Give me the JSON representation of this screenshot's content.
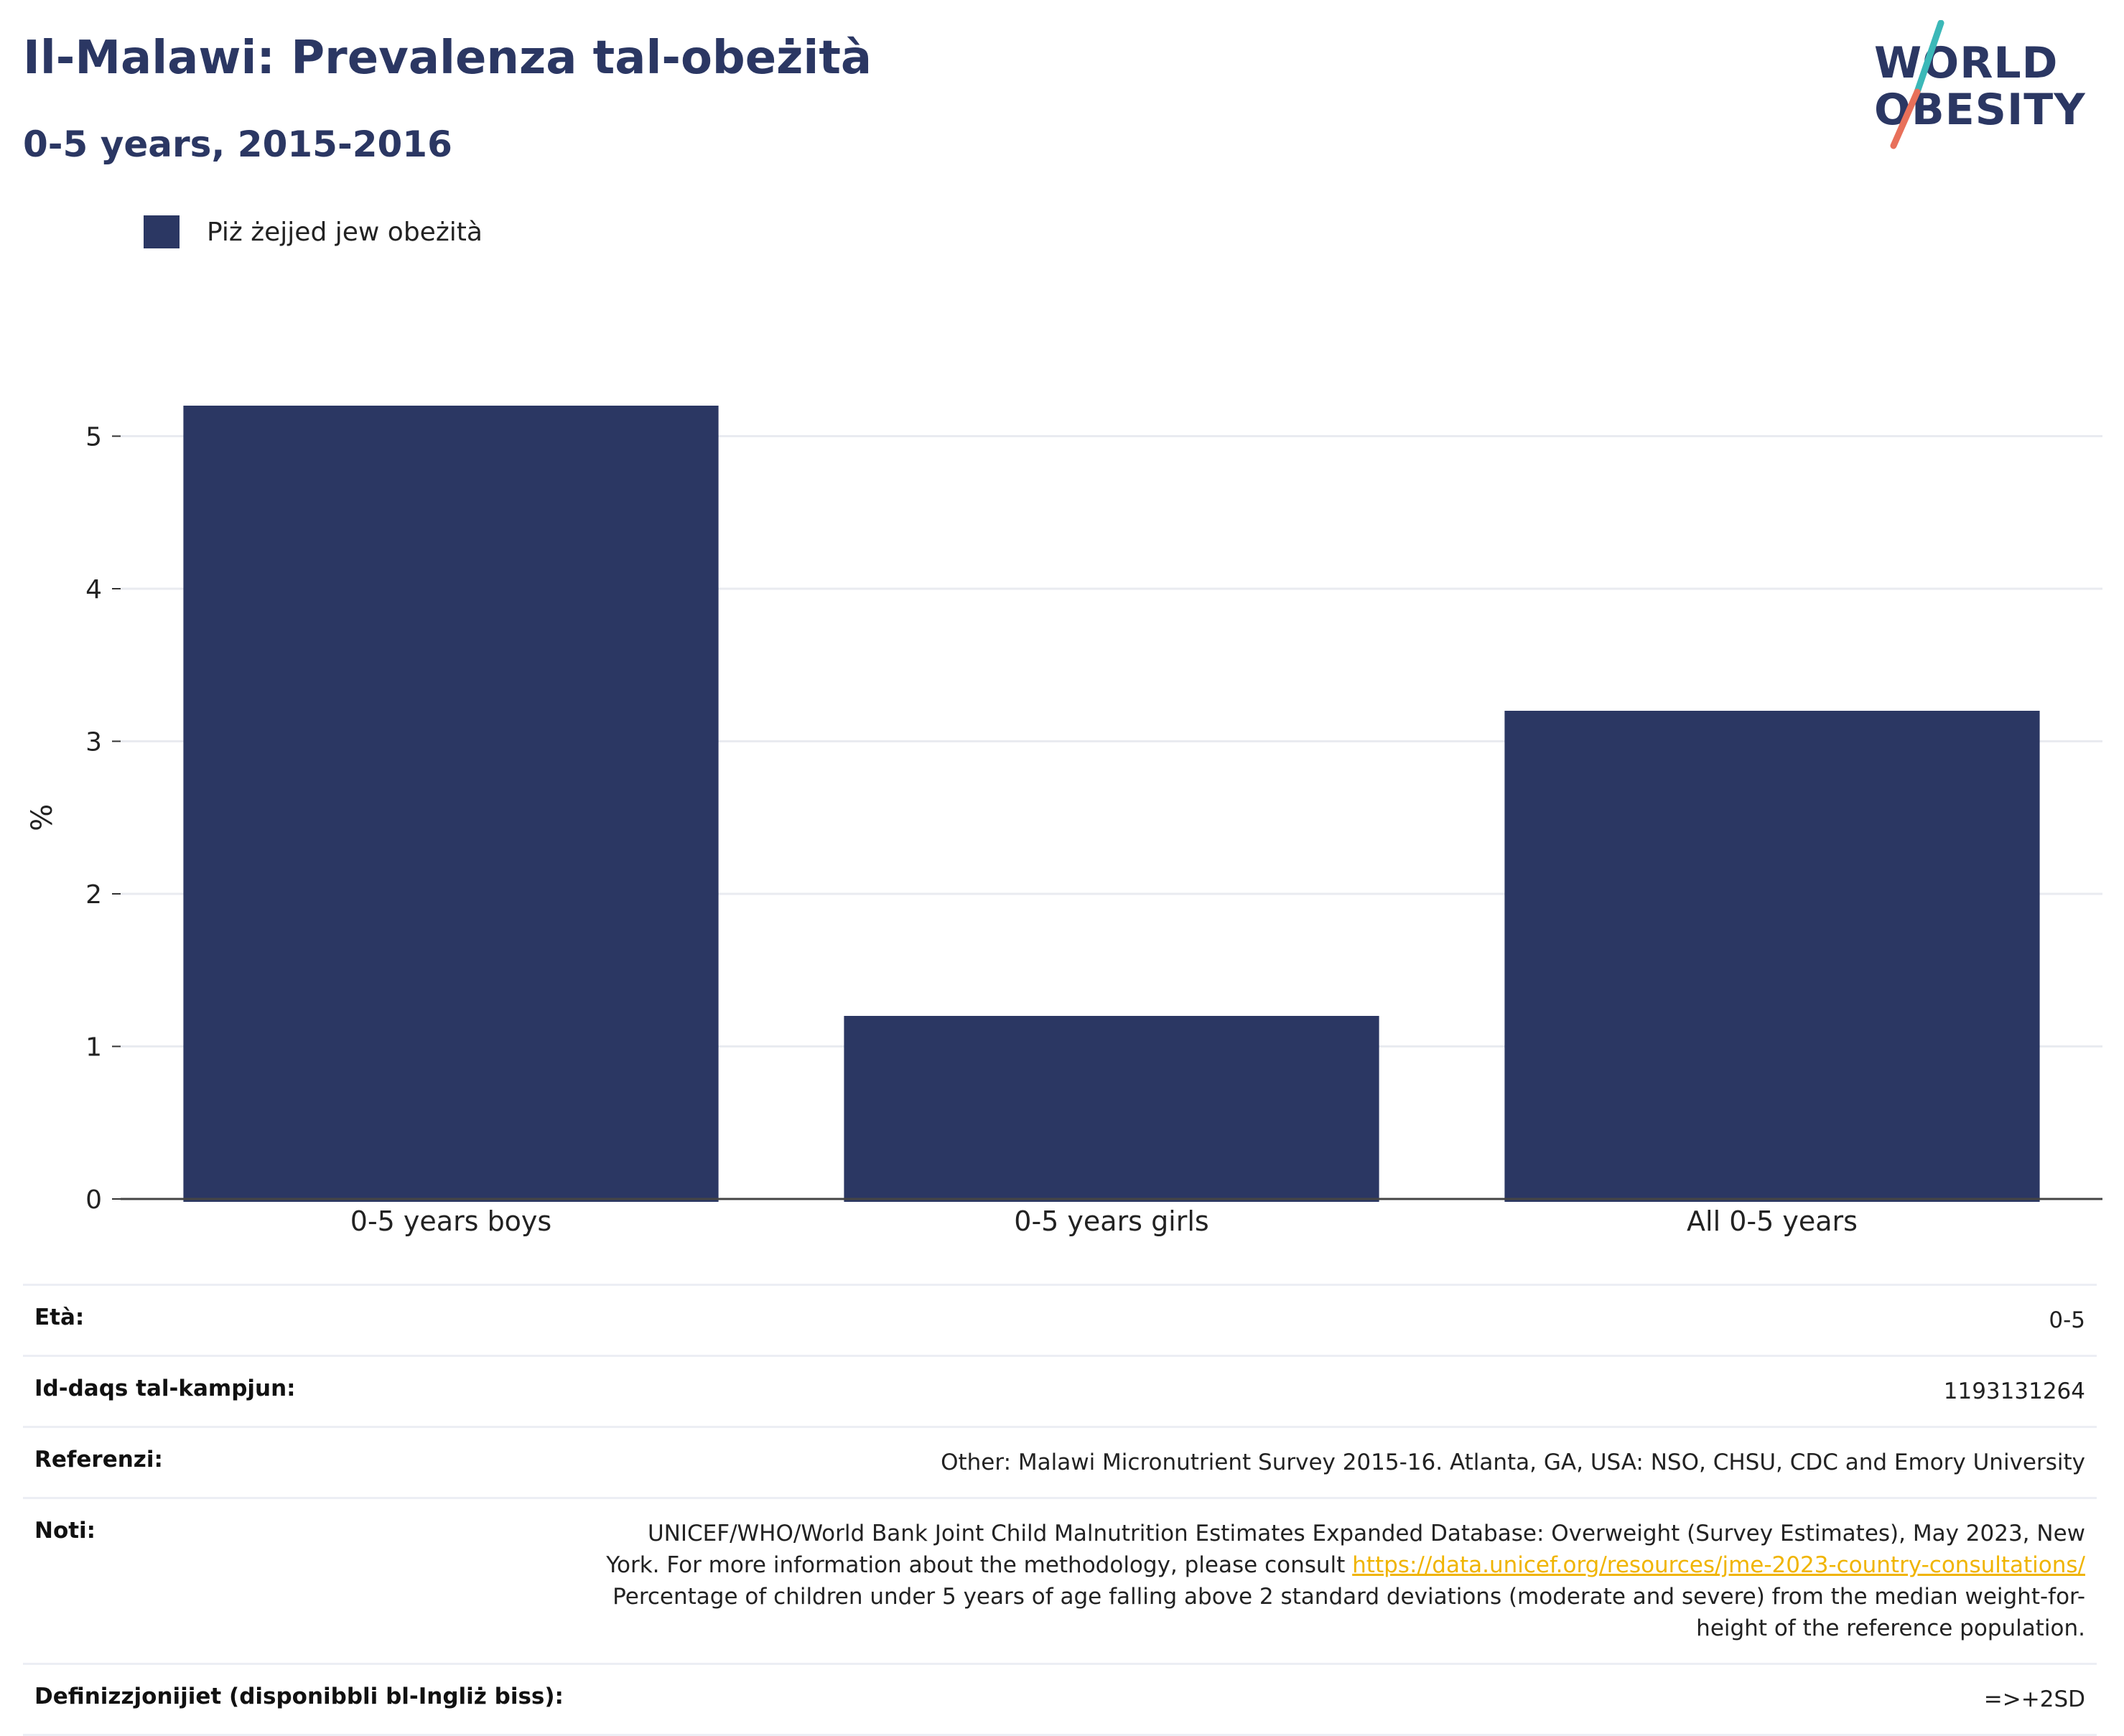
{
  "header": {
    "title": "Il-Malawi: Prevalenza tal-obeżità",
    "subtitle": "0-5 years, 2015-2016"
  },
  "logo": {
    "line1": "WORLD",
    "line2": "OBESITY",
    "colors": {
      "text": "#2b3763",
      "slash_top": "#3bb8b8",
      "slash_bottom": "#e8705a"
    }
  },
  "legend": {
    "label": "Piż żejjed jew obeżità",
    "color": "#2b3763"
  },
  "chart_data": {
    "type": "bar",
    "categories": [
      "0-5 years boys",
      "0-5 years girls",
      "All 0-5 years"
    ],
    "series": [
      {
        "name": "Piż żejjed jew obeżità",
        "values": [
          5.2,
          1.2,
          3.2
        ],
        "color": "#2b3763"
      }
    ],
    "xlabel": "",
    "ylabel": "%",
    "ylim": [
      0,
      5.4
    ],
    "yticks": [
      "0",
      "1",
      "2",
      "3",
      "4",
      "5"
    ],
    "grid": true,
    "legend_position": "top-left"
  },
  "meta": {
    "age": {
      "label": "Età:",
      "value": "0-5"
    },
    "sample": {
      "label": "Id-daqs tal-kampjun:",
      "value": "1193131264"
    },
    "references": {
      "label": "Referenzi:",
      "value": "Other: Malawi Micronutrient Survey 2015-16. Atlanta, GA, USA: NSO, CHSU, CDC and Emory University"
    },
    "notes": {
      "label": "Noti:",
      "line1": "UNICEF/WHO/World Bank Joint Child Malnutrition Estimates Expanded Database: Overweight (Survey Estimates), May 2023, New",
      "line2_prefix": "York. For more information about the methodology, please consult ",
      "link": "https://data.unicef.org/resources/jme-2023-country-consultations/",
      "line3": "Percentage of children under 5 years of age falling above 2 standard deviations (moderate and severe) from the median weight-for-",
      "line4": "height of the reference population."
    },
    "definitions": {
      "label": "Definizzjonijiet (disponibbli bl-Ingliż biss):",
      "value": "=>+2SD"
    }
  }
}
